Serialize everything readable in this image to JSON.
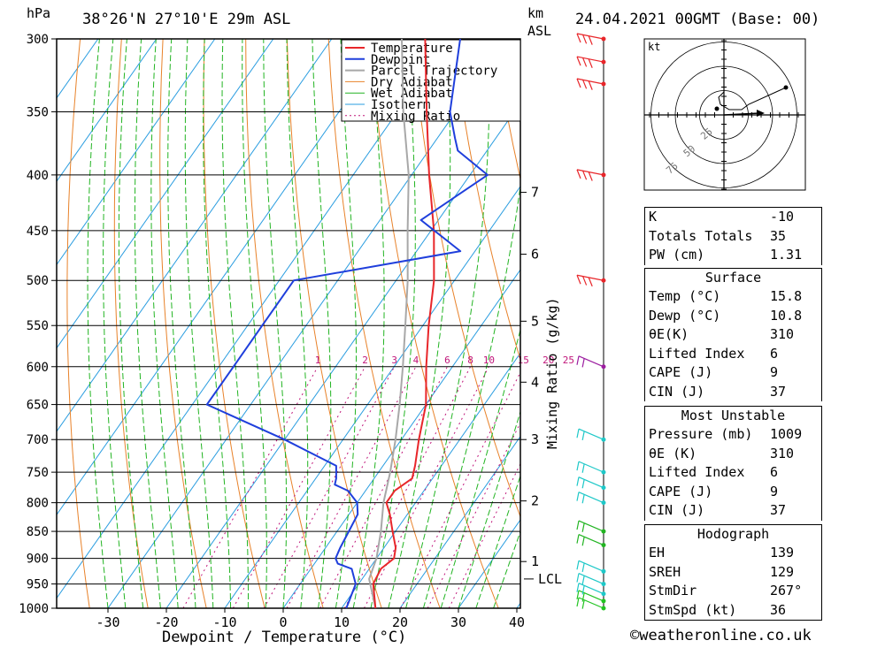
{
  "header": {
    "y_unit": "hPa",
    "location": "38°26'N 27°10'E 29m ASL",
    "km_unit": "km",
    "km_sub": "ASL",
    "datetime": "24.04.2021 00GMT (Base: 00)"
  },
  "chart_data": {
    "type": "line",
    "title": "38°26'N 27°10'E 29m ASL",
    "xlabel": "Dewpoint / Temperature (°C)",
    "ylabel": "hPa",
    "xlim": [
      -40,
      40
    ],
    "ylim": [
      1000,
      300
    ],
    "x_ticks": [
      "-30",
      "-20",
      "-10",
      "0",
      "10",
      "20",
      "30",
      "40"
    ],
    "pressure_ticks": [
      "300",
      "350",
      "400",
      "450",
      "500",
      "550",
      "600",
      "650",
      "700",
      "750",
      "800",
      "850",
      "900",
      "950",
      "1000"
    ],
    "km_ticks": [
      {
        "label": "1",
        "p": 906
      },
      {
        "label": "2",
        "p": 797
      },
      {
        "label": "3",
        "p": 700
      },
      {
        "label": "4",
        "p": 620
      },
      {
        "label": "5",
        "p": 545
      },
      {
        "label": "6",
        "p": 473
      },
      {
        "label": "7",
        "p": 415
      }
    ],
    "lcl": {
      "label": "LCL",
      "p": 940
    },
    "mixing_ratio_axis": "Mixing Ratio (g/kg)",
    "mixing_ratio_labels": [
      "1",
      "2",
      "3",
      "4",
      "6",
      "8",
      "10",
      "15",
      "20",
      "25"
    ],
    "legend": [
      "Temperature",
      "Dewpoint",
      "Parcel Trajectory",
      "Dry Adiabat",
      "Wet Adiabat",
      "Isotherm",
      "Mixing Ratio"
    ],
    "colors": {
      "temperature": "#e8262a",
      "dewpoint": "#1f3fdc",
      "parcel": "#a8a8a8",
      "dry_adiabat": "#e8822a",
      "wet_adiabat": "#22b422",
      "isotherm": "#2a9de0",
      "mixing_ratio": "#c0167a"
    },
    "series": [
      {
        "name": "Temperature",
        "p": [
          1000,
          950,
          920,
          900,
          880,
          850,
          820,
          800,
          780,
          760,
          740,
          700,
          650,
          600,
          550,
          500,
          450,
          400,
          350,
          300
        ],
        "t": [
          15.8,
          12.5,
          12,
          13,
          12,
          9.5,
          7,
          5,
          5,
          6.5,
          5.5,
          3,
          0,
          -4.5,
          -9,
          -13.5,
          -19.5,
          -27,
          -35,
          -44
        ]
      },
      {
        "name": "Dewpoint",
        "p": [
          1000,
          950,
          920,
          910,
          900,
          880,
          850,
          820,
          800,
          780,
          770,
          760,
          740,
          700,
          650,
          600,
          550,
          500,
          470,
          440,
          400,
          380,
          370,
          350,
          300
        ],
        "t": [
          10.8,
          9.5,
          7,
          4,
          3,
          2.5,
          2,
          1.5,
          0,
          -3,
          -6,
          -6.5,
          -8,
          -20,
          -37.5,
          -37.5,
          -37.5,
          -37.5,
          -12.5,
          -23,
          -17,
          -25,
          -27,
          -31,
          -38
        ]
      },
      {
        "name": "Parcel Trajectory",
        "p": [
          1000,
          940,
          900,
          850,
          800,
          750,
          700,
          650,
          600,
          550,
          500,
          450,
          400,
          350,
          300
        ],
        "t": [
          15.8,
          11.2,
          10,
          7.5,
          4.5,
          2,
          -1,
          -4.5,
          -8.5,
          -13,
          -18,
          -24,
          -30.5,
          -39,
          -48
        ]
      }
    ],
    "wind_barbs": [
      {
        "p": 1000,
        "color": "#22c422"
      },
      {
        "p": 985,
        "color": "#22c422"
      },
      {
        "p": 970,
        "color": "#1ec8c8"
      },
      {
        "p": 950,
        "color": "#1ec8c8"
      },
      {
        "p": 925,
        "color": "#1ec8c8"
      },
      {
        "p": 875,
        "color": "#22b422"
      },
      {
        "p": 850,
        "color": "#22b422"
      },
      {
        "p": 800,
        "color": "#1ec8c8"
      },
      {
        "p": 775,
        "color": "#1ec8c8"
      },
      {
        "p": 750,
        "color": "#1ec8c8"
      },
      {
        "p": 700,
        "color": "#1ec8c8"
      },
      {
        "p": 600,
        "color": "#9c1ea0"
      },
      {
        "p": 500,
        "color": "#e8262a"
      },
      {
        "p": 400,
        "color": "#e8262a"
      },
      {
        "p": 330,
        "color": "#e8262a"
      },
      {
        "p": 315,
        "color": "#e8262a"
      },
      {
        "p": 300,
        "color": "#e8262a"
      }
    ]
  },
  "hodograph": {
    "unit": "kt",
    "ring_labels": [
      "25",
      "50",
      "75"
    ]
  },
  "indices": [
    {
      "label": "K",
      "value": "-10"
    },
    {
      "label": "Totals Totals",
      "value": "35"
    },
    {
      "label": "PW (cm)",
      "value": "1.31"
    }
  ],
  "surface": {
    "title": "Surface",
    "rows": [
      {
        "label": "Temp (°C)",
        "value": "15.8"
      },
      {
        "label": "Dewp (°C)",
        "value": "10.8"
      },
      {
        "label": "θE(K)",
        "value": "310"
      },
      {
        "label": "Lifted Index",
        "value": "6"
      },
      {
        "label": "CAPE (J)",
        "value": "9"
      },
      {
        "label": "CIN (J)",
        "value": "37"
      }
    ]
  },
  "most_unstable": {
    "title": "Most Unstable",
    "rows": [
      {
        "label": "Pressure (mb)",
        "value": "1009"
      },
      {
        "label": "θE (K)",
        "value": "310"
      },
      {
        "label": "Lifted Index",
        "value": "6"
      },
      {
        "label": "CAPE (J)",
        "value": "9"
      },
      {
        "label": "CIN (J)",
        "value": "37"
      }
    ]
  },
  "hodograph_table": {
    "title": "Hodograph",
    "rows": [
      {
        "label": "EH",
        "value": "139"
      },
      {
        "label": "SREH",
        "value": "129"
      },
      {
        "label": "StmDir",
        "value": "267°"
      },
      {
        "label": "StmSpd (kt)",
        "value": "36"
      }
    ]
  },
  "footer": {
    "copyright": "©weatheronline.co.uk"
  }
}
